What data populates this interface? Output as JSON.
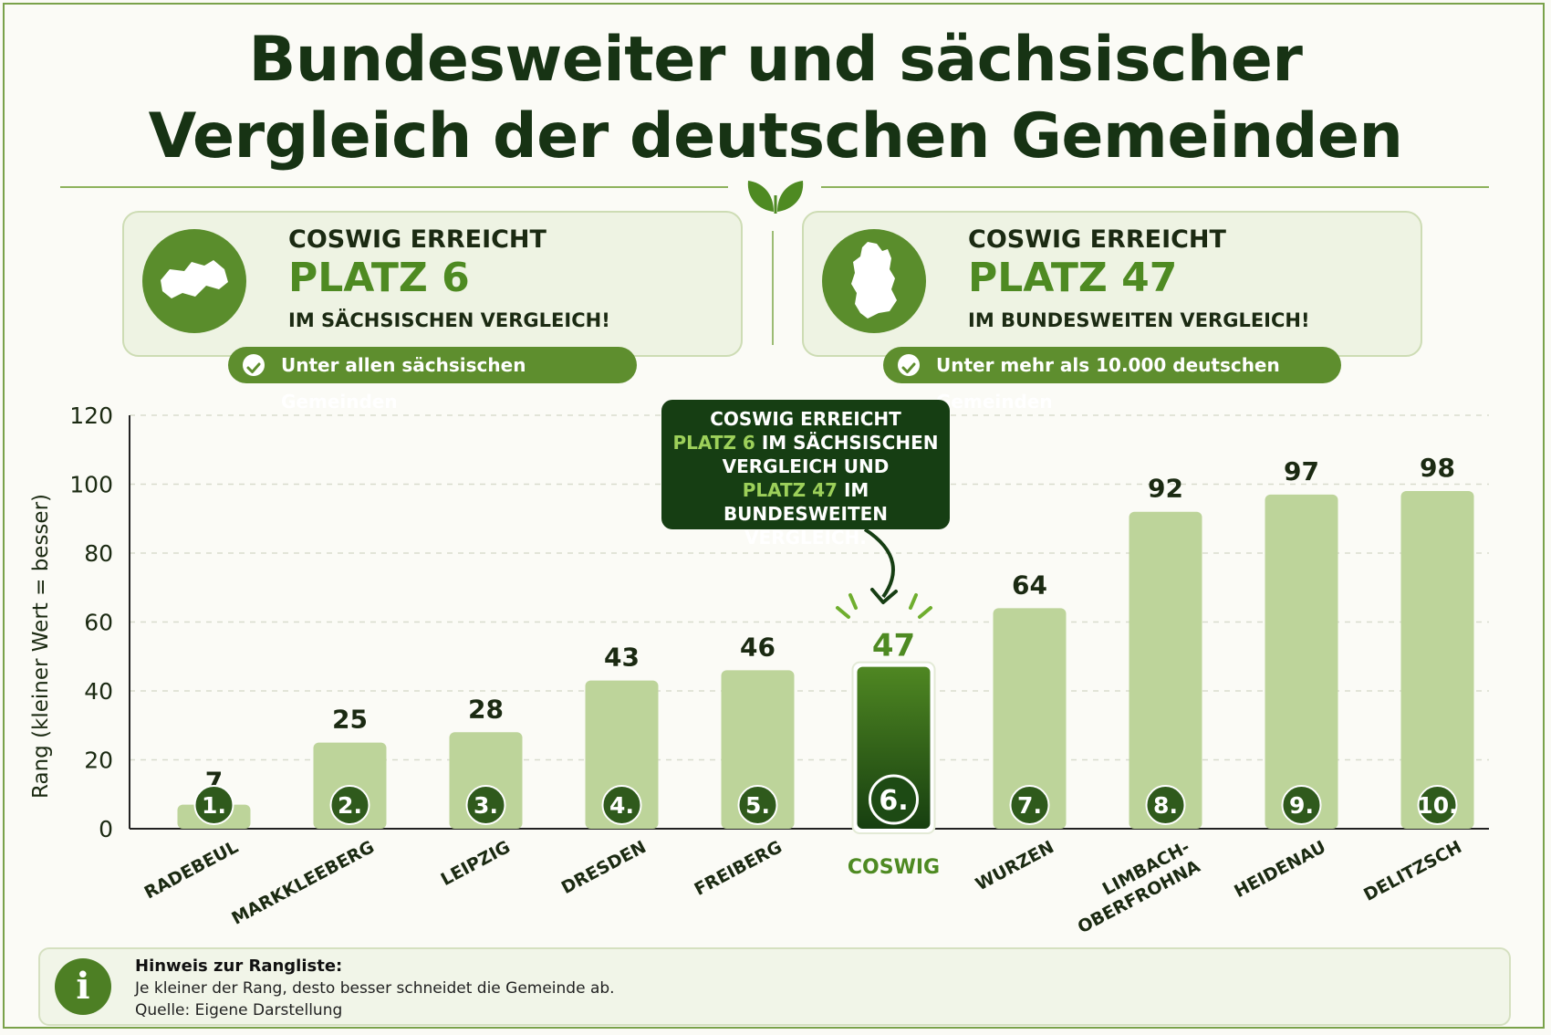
{
  "title": {
    "line1": "Bundesweiter und sächsischer",
    "line2": "Vergleich der deutschen Gemeinden"
  },
  "icons": {
    "leaf": "leaf-icon",
    "saxony_map": "saxony-map-icon",
    "germany_map": "germany-map-icon",
    "check": "check-icon",
    "info": "info-icon"
  },
  "cards": {
    "saxony": {
      "pre": "COSWIG ERREICHT",
      "big": "PLATZ 6",
      "post": "IM SÄCHSISCHEN VERGLEICH!",
      "pill": "Unter allen sächsischen Gemeinden"
    },
    "germany": {
      "pre": "COSWIG ERREICHT",
      "big": "PLATZ 47",
      "post": "IM BUNDESWEITEN VERGLEICH!",
      "pill": "Unter mehr als 10.000 deutschen Gemeinden"
    }
  },
  "tooltip": {
    "l1": "COSWIG ERREICHT",
    "l2a": "PLATZ 6",
    "l2b": " IM SÄCHSISCHEN",
    "l3": "VERGLEICH  UND",
    "l4a": "PLATZ 47",
    "l4b": " IM BUNDESWEITEN",
    "l5": "VERGLEICH."
  },
  "note": {
    "heading": "Hinweis zur Rangliste:",
    "line1": "Je kleiner der Rang, desto besser schneidet die Gemeinde ab.",
    "line2": "Quelle: Eigene Darstellung",
    "icon_glyph": "i"
  },
  "colors": {
    "bar": "#bdd49a",
    "highlight_bar_top": "#4f8722",
    "highlight_bar_bottom": "#173f10",
    "badge": "#2f5a1c",
    "accent": "#4e8a22",
    "dark": "#163e13"
  },
  "chart_data": {
    "type": "bar",
    "categories": [
      "RADEBEUL",
      "MARKKLEEBERG",
      "LEIPZIG",
      "DRESDEN",
      "FREIBERG",
      "COSWIG",
      "WURZEN",
      "LIMBACH-OBERFROHNA",
      "HEIDENAU",
      "DELITZSCH"
    ],
    "category_lines": [
      [
        "RADEBEUL"
      ],
      [
        "MARKKLEEBERG"
      ],
      [
        "LEIPZIG"
      ],
      [
        "DRESDEN"
      ],
      [
        "FREIBERG"
      ],
      [
        "COSWIG"
      ],
      [
        "WURZEN"
      ],
      [
        "LIMBACH-",
        "OBERFROHNA"
      ],
      [
        "HEIDENAU"
      ],
      [
        "DELITZSCH"
      ]
    ],
    "values": [
      7,
      25,
      28,
      43,
      46,
      47,
      64,
      92,
      97,
      98
    ],
    "ranks": [
      "1.",
      "2.",
      "3.",
      "4.",
      "5.",
      "6.",
      "7.",
      "8.",
      "9.",
      "10."
    ],
    "highlight": "COSWIG",
    "ylabel": "Rang (kleiner Wert = besser)",
    "xlabel": "",
    "ylim": [
      0,
      120
    ],
    "yticks": [
      0,
      20,
      40,
      60,
      80,
      100,
      120
    ],
    "grid": true
  }
}
